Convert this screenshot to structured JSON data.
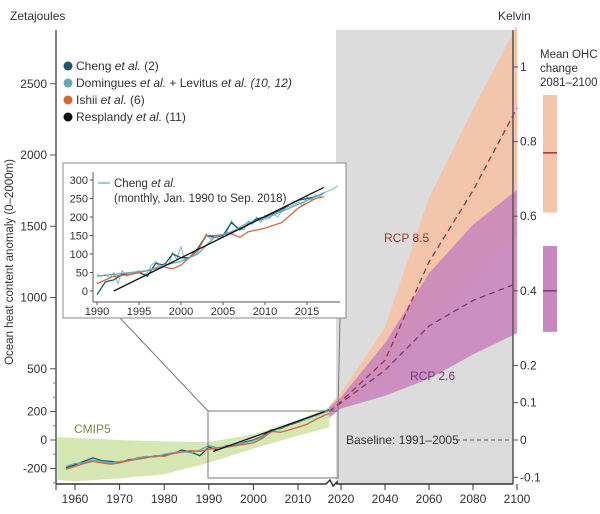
{
  "chart_data": {
    "type": "line",
    "left_axis_unit": "Zetajoules",
    "right_axis_unit": "Kelvin",
    "ylabel": "Ocean heat content anomaly (0–2000m)",
    "x_ticks": [
      "1960",
      "1970",
      "1980",
      "1990",
      "2000",
      "2010",
      "2020",
      "2040",
      "2060",
      "2080",
      "2100"
    ],
    "y_ticks_left": [
      2500,
      2000,
      1500,
      1000,
      500,
      200,
      0,
      -200
    ],
    "y_ticks_right": [
      1,
      0.8,
      0.6,
      0.4,
      0.2,
      0.1,
      0,
      -0.1
    ],
    "y_tick_labels_left": [
      "2500",
      "2000",
      "1500",
      "1000",
      "500",
      "200",
      "0",
      "-200"
    ],
    "y_tick_labels_right": [
      "1",
      "0.8",
      "0.6",
      "0.4",
      "0.2",
      "0.1",
      "0",
      "-0.1"
    ],
    "xlim": [
      1956,
      2100
    ],
    "ylim_left": [
      -300,
      2950
    ],
    "legend": {
      "placement": "top-left",
      "entries": [
        {
          "name": "Cheng",
          "etal": " et al.",
          "ref": " (2)",
          "color": "#1d5670"
        },
        {
          "name": "Domingues",
          "etal": " et al.",
          "mid": " + Levitus",
          "etal2": " et al.",
          "ref": " (10, 12)",
          "color": "#62aabb"
        },
        {
          "name": "Ishii",
          "etal": " et al.",
          "ref": " (6)",
          "color": "#d0683a"
        },
        {
          "name": "Resplandy",
          "etal": " et al.",
          "ref": " (11)",
          "color": "#111111"
        }
      ]
    },
    "series": [
      {
        "name": "Cheng et al.",
        "color": "#1d5670",
        "x": [
          1958,
          1960,
          1962,
          1964,
          1966,
          1968,
          1970,
          1972,
          1974,
          1976,
          1978,
          1980,
          1982,
          1984,
          1986,
          1988,
          1990,
          1992,
          1994,
          1996,
          1998,
          2000,
          2002,
          2004,
          2006,
          2008,
          2010,
          2012,
          2014,
          2016,
          2017
        ],
        "y": [
          -195,
          -175,
          -150,
          -125,
          -145,
          -150,
          -155,
          -140,
          -130,
          -120,
          -115,
          -105,
          -95,
          -70,
          -85,
          -110,
          -50,
          -70,
          -40,
          -35,
          -15,
          0,
          25,
          70,
          80,
          105,
          125,
          150,
          175,
          200,
          215
        ]
      },
      {
        "name": "Domingues et al. + Levitus et al.",
        "color": "#62aabb",
        "x": [
          1958,
          1960,
          1962,
          1964,
          1966,
          1968,
          1970,
          1972,
          1974,
          1976,
          1978,
          1980,
          1982,
          1984,
          1986,
          1988,
          1990,
          1992,
          1994,
          1996,
          1998,
          2000,
          2002,
          2004,
          2006,
          2008,
          2010,
          2012,
          2014,
          2016,
          2017
        ],
        "y": [
          -185,
          -165,
          -160,
          -140,
          -150,
          -160,
          -150,
          -145,
          -125,
          -115,
          -120,
          -100,
          -90,
          -80,
          -90,
          -70,
          -40,
          -55,
          -45,
          -30,
          -20,
          -5,
          20,
          55,
          85,
          110,
          130,
          150,
          170,
          195,
          205
        ]
      },
      {
        "name": "Ishii et al.",
        "color": "#d0683a",
        "x": [
          1958,
          1960,
          1962,
          1964,
          1966,
          1968,
          1970,
          1972,
          1974,
          1976,
          1978,
          1980,
          1982,
          1984,
          1986,
          1988,
          1990,
          1992,
          1994,
          1996,
          1998,
          2000,
          2002,
          2004,
          2006,
          2008,
          2010,
          2012,
          2014,
          2016,
          2017
        ],
        "y": [
          -205,
          -185,
          -165,
          -150,
          -160,
          -170,
          -160,
          -145,
          -135,
          -125,
          -110,
          -115,
          -95,
          -85,
          -75,
          -80,
          -65,
          -55,
          -50,
          -40,
          -30,
          -20,
          10,
          60,
          55,
          70,
          90,
          110,
          145,
          175,
          185
        ]
      },
      {
        "name": "Resplandy et al.",
        "color": "#111111",
        "x": [
          1991,
          2016
        ],
        "y": [
          -80,
          200
        ]
      }
    ],
    "cmip5": {
      "label": "CMIP5",
      "color": "#d6e7b3",
      "x": [
        1956,
        1960,
        1970,
        1980,
        1990,
        2000,
        2010,
        2017
      ],
      "upper": [
        20,
        15,
        0,
        -10,
        -15,
        40,
        140,
        230
      ],
      "lower": [
        -280,
        -290,
        -270,
        -240,
        -160,
        -60,
        30,
        90
      ]
    },
    "projections": [
      {
        "name": "RCP 8.5",
        "band_color": "#f3c5aa",
        "mean_color": "#a8323c",
        "x": [
          2017,
          2020,
          2040,
          2060,
          2080,
          2100
        ],
        "mean": [
          200,
          270,
          560,
          1250,
          1750,
          2330
        ],
        "upper": [
          240,
          330,
          790,
          1700,
          2320,
          2910
        ],
        "lower": [
          150,
          230,
          380,
          780,
          1060,
          1450
        ],
        "mean_ohc_change_2081_2100_K": {
          "low": 0.61,
          "mean": 0.77,
          "high": 0.925
        }
      },
      {
        "name": "RCP 2.6",
        "band_color": "#c987be",
        "mean_color": "#7a3a72",
        "x": [
          2017,
          2020,
          2040,
          2060,
          2080,
          2100
        ],
        "mean": [
          200,
          260,
          490,
          800,
          980,
          1100
        ],
        "upper": [
          230,
          300,
          680,
          1170,
          1510,
          1755
        ],
        "lower": [
          160,
          220,
          310,
          430,
          600,
          750
        ],
        "mean_ohc_change_2081_2100_K": {
          "low": 0.29,
          "mean": 0.4,
          "high": 0.52
        }
      }
    ],
    "projection_region_color": "#dcdcdc",
    "baseline_label": "Baseline: 1991–2005",
    "mean_ohc_label": [
      "Mean OHC",
      "change",
      "2081–2100"
    ],
    "inset": {
      "legend_name": "Cheng",
      "legend_etal": " et al.",
      "legend_note": "(monthly, Jan. 1990 to Sep. 2018)",
      "x_ticks": [
        "1990",
        "1995",
        "2000",
        "2005",
        "2010",
        "2015"
      ],
      "y_ticks": [
        "0",
        "50",
        "100",
        "150",
        "200",
        "250",
        "300"
      ],
      "xlim": [
        1989.5,
        2019
      ],
      "ylim": [
        -20,
        310
      ],
      "series": [
        {
          "name": "Cheng et al. monthly",
          "color": "#7fb9c6",
          "x": [
            1990,
            1990.5,
            1991,
            1991.5,
            1992,
            1992.5,
            1993,
            1993.5,
            1994,
            1994.5,
            1995,
            1995.5,
            1996,
            1996.5,
            1997,
            1997.5,
            1998,
            1998.5,
            1999,
            1999.5,
            2000,
            2000.5,
            2001,
            2001.5,
            2002,
            2002.5,
            2003,
            2003.5,
            2004,
            2004.5,
            2005,
            2005.5,
            2006,
            2006.5,
            2007,
            2007.5,
            2008,
            2008.5,
            2009,
            2009.5,
            2010,
            2010.5,
            2011,
            2011.5,
            2012,
            2012.5,
            2013,
            2013.5,
            2014,
            2014.5,
            2015,
            2015.5,
            2016,
            2016.5,
            2017,
            2017.5,
            2018,
            2018.7
          ],
          "y": [
            45,
            40,
            45,
            35,
            50,
            20,
            55,
            40,
            45,
            50,
            55,
            45,
            50,
            70,
            80,
            65,
            75,
            70,
            105,
            85,
            120,
            80,
            90,
            95,
            105,
            130,
            155,
            140,
            150,
            140,
            150,
            160,
            190,
            175,
            170,
            165,
            190,
            180,
            200,
            185,
            205,
            195,
            210,
            200,
            215,
            225,
            230,
            235,
            240,
            230,
            255,
            245,
            260,
            255,
            265,
            270,
            275,
            285
          ]
        },
        {
          "name": "Cheng et al.",
          "color": "#1d5670",
          "x": [
            1990,
            1991,
            1992,
            1993,
            1994,
            1995,
            1996,
            1997,
            1998,
            1999,
            2000,
            2001,
            2002,
            2003,
            2004,
            2005,
            2006,
            2007,
            2008,
            2009,
            2010,
            2011,
            2012,
            2013,
            2014,
            2015,
            2016,
            2017
          ],
          "y": [
            -10,
            25,
            30,
            45,
            45,
            50,
            40,
            75,
            70,
            100,
            90,
            90,
            115,
            150,
            145,
            150,
            185,
            165,
            180,
            195,
            200,
            210,
            220,
            235,
            245,
            250,
            255,
            265
          ]
        },
        {
          "name": "Ishii et al.",
          "color": "#d0683a",
          "x": [
            1990,
            1992,
            1994,
            1996,
            1998,
            1999,
            2000,
            2002,
            2003,
            2004,
            2006,
            2007,
            2008,
            2010,
            2012,
            2014,
            2016,
            2017
          ],
          "y": [
            20,
            40,
            45,
            55,
            65,
            60,
            70,
            110,
            150,
            150,
            155,
            145,
            160,
            170,
            185,
            225,
            250,
            255
          ]
        },
        {
          "name": "Domingues et al. + Levitus et al.",
          "color": "#62aabb",
          "x": [
            1990,
            1992,
            1994,
            1996,
            1998,
            2000,
            2002,
            2004,
            2006,
            2008,
            2010,
            2012,
            2014,
            2016,
            2017
          ],
          "y": [
            40,
            45,
            50,
            55,
            70,
            80,
            100,
            145,
            160,
            185,
            195,
            215,
            235,
            255,
            265
          ]
        },
        {
          "name": "Resplandy et al.",
          "color": "#111111",
          "x": [
            1992,
            2017
          ],
          "y": [
            0,
            280
          ]
        }
      ]
    }
  }
}
